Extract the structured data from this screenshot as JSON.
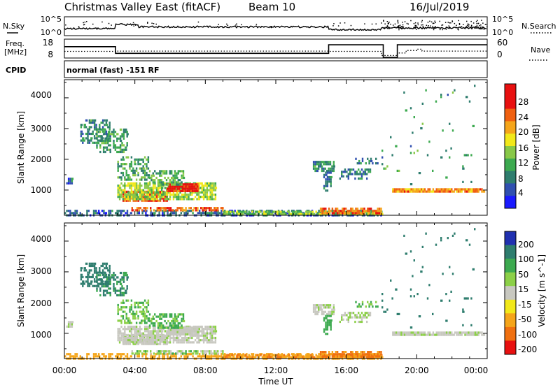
{
  "chart_data": {
    "type": "heatmap",
    "title_station": "Christmas Valley East (fitACF)",
    "title_beam": "Beam 10",
    "title_date": "16/Jul/2019",
    "xlabel": "Time UT",
    "x_ticks": [
      "00:00",
      "04:00",
      "08:00",
      "12:00",
      "16:00",
      "20:00",
      "00:00"
    ],
    "top_panels": {
      "nsky": {
        "left_label": "N.Sky",
        "right_label": "N.Search",
        "ticks_left": [
          "10^5",
          "10^0"
        ],
        "ticks_right": [
          "10^5",
          "10^0"
        ]
      },
      "freq": {
        "left_label_1": "Freq.",
        "left_label_2": "[MHz]",
        "right_label": "Nave",
        "ticks_left": [
          "18",
          "8"
        ],
        "ticks_right": [
          "60",
          "0"
        ],
        "freq_steps": [
          {
            "t0": 0.0,
            "t1": 2.9,
            "value": 14
          },
          {
            "t0": 2.9,
            "t1": 15.0,
            "value": 10.5
          },
          {
            "t0": 15.0,
            "t1": 18.1,
            "value": 15
          },
          {
            "t0": 18.1,
            "t1": 18.9,
            "value": 8.3
          },
          {
            "t0": 18.9,
            "t1": 24.0,
            "value": 15
          }
        ],
        "nave_steps": [
          {
            "t0": 0.0,
            "t1": 2.9,
            "value": 21
          },
          {
            "t0": 2.9,
            "t1": 15.0,
            "value": 22
          },
          {
            "t0": 15.0,
            "t1": 18.0,
            "value": 21
          },
          {
            "t0": 18.0,
            "t1": 18.9,
            "value": 8
          },
          {
            "t0": 18.9,
            "t1": 19.4,
            "value": 16
          },
          {
            "t0": 19.4,
            "t1": 20.0,
            "value": 24
          },
          {
            "t0": 20.0,
            "t1": 20.3,
            "value": 28
          },
          {
            "t0": 20.3,
            "t1": 24.0,
            "value": 22
          }
        ]
      },
      "cpid": {
        "label": "CPID",
        "text": "normal (fast) -151 RF"
      }
    },
    "power_panel": {
      "ylabel": "Slant Range [km]",
      "y_ticks": [
        "1000",
        "2000",
        "3000",
        "4000"
      ],
      "colorbar_label": "Power [dB]",
      "colorbar_ticks": [
        "4",
        "8",
        "12",
        "16",
        "20",
        "24",
        "28"
      ],
      "colorbar_colors": [
        "#1a1aff",
        "#3050b0",
        "#2e7d6e",
        "#3daa50",
        "#88c848",
        "#f2e81a",
        "#f5a51a",
        "#f06010",
        "#e81010",
        "#e81010"
      ],
      "ylim": [
        180,
        4590
      ],
      "xlim": [
        0,
        24
      ]
    },
    "velocity_panel": {
      "ylabel": "Slant Range [km]",
      "y_ticks": [
        "1000",
        "2000",
        "3000",
        "4000"
      ],
      "colorbar_label": "Velocity [m s^-1]",
      "colorbar_ticks": [
        "200",
        "100",
        "50",
        "15",
        "-15",
        "-50",
        "-100",
        "-200"
      ],
      "colorbar_colors": [
        "#2030b0",
        "#2e7d6e",
        "#3daa50",
        "#8cd048",
        "#c8c8c0",
        "#f2e81a",
        "#f5a51a",
        "#f07010",
        "#e81010"
      ],
      "ylim": [
        180,
        4590
      ],
      "xlim": [
        0,
        24
      ]
    },
    "echo_regions": [
      {
        "t0": 0.0,
        "t1": 18.0,
        "r0": 200,
        "r1": 360,
        "power": 6,
        "vel": -55,
        "density": 0.55
      },
      {
        "t0": 9.0,
        "t1": 18.0,
        "r0": 200,
        "r1": 330,
        "power": 14,
        "vel": -70,
        "density": 0.85
      },
      {
        "t0": 14.5,
        "t1": 18.0,
        "r0": 260,
        "r1": 430,
        "power": 23,
        "vel": -80,
        "density": 0.8
      },
      {
        "t0": 3.8,
        "t1": 9.0,
        "r0": 350,
        "r1": 450,
        "power": 24,
        "vel": 20,
        "density": 0.75
      },
      {
        "t0": 3.3,
        "t1": 5.8,
        "r0": 620,
        "r1": 980,
        "power": 25,
        "vel": 8,
        "density": 0.9
      },
      {
        "t0": 3.0,
        "t1": 8.6,
        "r0": 700,
        "r1": 1250,
        "power": 15,
        "vel": 5,
        "density": 0.8
      },
      {
        "t0": 5.8,
        "t1": 7.6,
        "r0": 960,
        "r1": 1220,
        "power": 28,
        "vel": 3,
        "density": 0.95
      },
      {
        "t0": 4.8,
        "t1": 6.8,
        "r0": 1150,
        "r1": 1650,
        "power": 12,
        "vel": 40,
        "density": 0.55
      },
      {
        "t0": 3.0,
        "t1": 4.8,
        "r0": 1300,
        "r1": 2100,
        "power": 11,
        "vel": 30,
        "density": 0.5
      },
      {
        "t0": 1.8,
        "t1": 3.6,
        "r0": 2200,
        "r1": 3000,
        "power": 10,
        "vel": 80,
        "density": 0.45
      },
      {
        "t0": 0.9,
        "t1": 2.6,
        "r0": 2500,
        "r1": 3300,
        "power": 9,
        "vel": 110,
        "density": 0.45
      },
      {
        "t0": 14.1,
        "t1": 15.3,
        "r0": 1650,
        "r1": 1950,
        "power": 9,
        "vel": 10,
        "density": 0.7
      },
      {
        "t0": 14.7,
        "t1": 15.1,
        "r0": 950,
        "r1": 1600,
        "power": 7,
        "vel": 60,
        "density": 0.6
      },
      {
        "t0": 15.6,
        "t1": 17.4,
        "r0": 1350,
        "r1": 1700,
        "power": 8,
        "vel": 12,
        "density": 0.55
      },
      {
        "t0": 16.5,
        "t1": 17.8,
        "r0": 1850,
        "r1": 2050,
        "power": 7,
        "vel": 35,
        "density": 0.4
      },
      {
        "t0": 0.1,
        "t1": 0.4,
        "r0": 1200,
        "r1": 1400,
        "power": 6,
        "vel": 10,
        "density": 0.5
      },
      {
        "t0": 18.6,
        "t1": 23.8,
        "r0": 980,
        "r1": 1060,
        "power": 22,
        "vel": 5,
        "density": 0.95
      },
      {
        "t0": 18.0,
        "t1": 23.5,
        "r0": 1100,
        "r1": 4500,
        "power": 10,
        "vel": 90,
        "density": 0.015
      }
    ]
  }
}
